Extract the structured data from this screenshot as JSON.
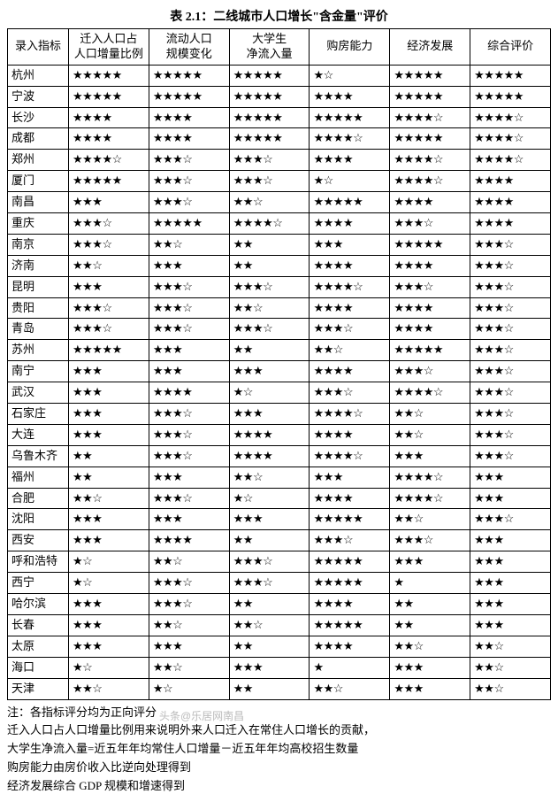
{
  "title": "表 2.1：二线城市人口增长\"含金量\"评价",
  "columns": [
    "录入指标",
    "迁入人口占\n人口增量比例",
    "流动人口\n规模变化",
    "大学生\n净流入量",
    "购房能力",
    "经济发展",
    "综合评价"
  ],
  "rows": [
    {
      "city": "杭州",
      "c1": 5.0,
      "c2": 5.0,
      "c3": 5.0,
      "c4": 1.5,
      "c5": 5.0,
      "c6": 5.0
    },
    {
      "city": "宁波",
      "c1": 5.0,
      "c2": 5.0,
      "c3": 5.0,
      "c4": 4.0,
      "c5": 5.0,
      "c6": 5.0
    },
    {
      "city": "长沙",
      "c1": 4.0,
      "c2": 4.0,
      "c3": 5.0,
      "c4": 5.0,
      "c5": 4.5,
      "c6": 4.5
    },
    {
      "city": "成都",
      "c1": 4.0,
      "c2": 4.0,
      "c3": 5.0,
      "c4": 4.5,
      "c5": 5.0,
      "c6": 4.5
    },
    {
      "city": "郑州",
      "c1": 4.5,
      "c2": 3.5,
      "c3": 3.5,
      "c4": 4.0,
      "c5": 4.5,
      "c6": 4.5
    },
    {
      "city": "厦门",
      "c1": 5.0,
      "c2": 3.5,
      "c3": 3.5,
      "c4": 1.5,
      "c5": 4.5,
      "c6": 4.0
    },
    {
      "city": "南昌",
      "c1": 3.0,
      "c2": 3.5,
      "c3": 2.5,
      "c4": 5.0,
      "c5": 4.0,
      "c6": 4.0
    },
    {
      "city": "重庆",
      "c1": 3.5,
      "c2": 5.0,
      "c3": 4.5,
      "c4": 4.0,
      "c5": 3.5,
      "c6": 4.0
    },
    {
      "city": "南京",
      "c1": 3.5,
      "c2": 2.5,
      "c3": 2.0,
      "c4": 3.0,
      "c5": 5.0,
      "c6": 3.5
    },
    {
      "city": "济南",
      "c1": 2.5,
      "c2": 3.0,
      "c3": 2.0,
      "c4": 4.0,
      "c5": 4.0,
      "c6": 3.5
    },
    {
      "city": "昆明",
      "c1": 3.0,
      "c2": 3.5,
      "c3": 3.5,
      "c4": 4.5,
      "c5": 3.5,
      "c6": 3.5
    },
    {
      "city": "贵阳",
      "c1": 3.5,
      "c2": 3.5,
      "c3": 2.5,
      "c4": 4.0,
      "c5": 4.0,
      "c6": 3.5
    },
    {
      "city": "青岛",
      "c1": 3.5,
      "c2": 3.5,
      "c3": 3.5,
      "c4": 3.5,
      "c5": 4.0,
      "c6": 3.5
    },
    {
      "city": "苏州",
      "c1": 5.0,
      "c2": 3.0,
      "c3": 2.0,
      "c4": 2.5,
      "c5": 5.0,
      "c6": 3.5
    },
    {
      "city": "南宁",
      "c1": 3.0,
      "c2": 3.0,
      "c3": 3.0,
      "c4": 4.0,
      "c5": 3.5,
      "c6": 3.5
    },
    {
      "city": "武汉",
      "c1": 3.0,
      "c2": 4.0,
      "c3": 1.5,
      "c4": 3.5,
      "c5": 4.5,
      "c6": 3.5
    },
    {
      "city": "石家庄",
      "c1": 3.0,
      "c2": 3.5,
      "c3": 3.0,
      "c4": 4.5,
      "c5": 2.5,
      "c6": 3.5
    },
    {
      "city": "大连",
      "c1": 3.0,
      "c2": 3.5,
      "c3": 4.0,
      "c4": 4.0,
      "c5": 2.5,
      "c6": 3.5
    },
    {
      "city": "乌鲁木齐",
      "c1": 2.0,
      "c2": 3.5,
      "c3": 4.0,
      "c4": 4.5,
      "c5": 3.0,
      "c6": 3.5
    },
    {
      "city": "福州",
      "c1": 2.0,
      "c2": 3.0,
      "c3": 2.5,
      "c4": 3.0,
      "c5": 4.5,
      "c6": 3.0
    },
    {
      "city": "合肥",
      "c1": 2.5,
      "c2": 3.5,
      "c3": 1.5,
      "c4": 4.0,
      "c5": 4.5,
      "c6": 3.0
    },
    {
      "city": "沈阳",
      "c1": 3.0,
      "c2": 3.0,
      "c3": 3.0,
      "c4": 5.0,
      "c5": 2.5,
      "c6": 3.5
    },
    {
      "city": "西安",
      "c1": 3.0,
      "c2": 4.0,
      "c3": 2.0,
      "c4": 3.5,
      "c5": 3.5,
      "c6": 3.0
    },
    {
      "city": "呼和浩特",
      "c1": 1.5,
      "c2": 2.5,
      "c3": 3.5,
      "c4": 5.0,
      "c5": 3.0,
      "c6": 3.0
    },
    {
      "city": "西宁",
      "c1": 1.5,
      "c2": 3.5,
      "c3": 3.5,
      "c4": 5.0,
      "c5": 1.0,
      "c6": 3.0
    },
    {
      "city": "哈尔滨",
      "c1": 3.0,
      "c2": 3.5,
      "c3": 2.0,
      "c4": 4.0,
      "c5": 2.0,
      "c6": 3.0
    },
    {
      "city": "长春",
      "c1": 3.0,
      "c2": 2.5,
      "c3": 2.5,
      "c4": 5.0,
      "c5": 2.0,
      "c6": 3.0
    },
    {
      "city": "太原",
      "c1": 3.0,
      "c2": 3.0,
      "c3": 2.0,
      "c4": 4.0,
      "c5": 2.5,
      "c6": 2.5
    },
    {
      "city": "海口",
      "c1": 1.5,
      "c2": 2.5,
      "c3": 3.0,
      "c4": 1.0,
      "c5": 3.0,
      "c6": 2.5
    },
    {
      "city": "天津",
      "c1": 2.5,
      "c2": 1.5,
      "c3": 2.0,
      "c4": 2.5,
      "c5": 3.0,
      "c6": 2.5
    }
  ],
  "notes": [
    "注：各指标评分均为正向评分",
    "迁入人口占人口增量比例用来说明外来人口迁入在常住人口增长的贡献，",
    "大学生净流入量=近五年年均常住人口增量－近五年年均高校招生数量",
    "购房能力由房价收入比逆向处理得到",
    "经济发展综合 GDP 规模和增速得到"
  ],
  "watermark": "头条@乐居网南昌",
  "star_full": "★",
  "star_empty": "☆"
}
